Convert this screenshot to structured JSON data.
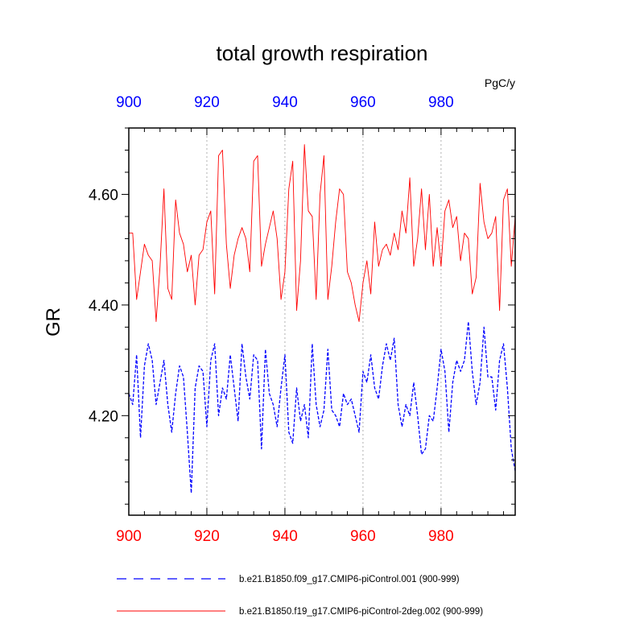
{
  "chart_data": {
    "type": "line",
    "title": "total growth respiration",
    "units": "PgC/y",
    "ylabel": "GR",
    "xlabel": "",
    "xlim": [
      900,
      999
    ],
    "ylim": [
      4.02,
      4.72
    ],
    "x_ticks": [
      "900",
      "920",
      "940",
      "960",
      "980"
    ],
    "y_ticks": [
      "4.20",
      "4.40",
      "4.60"
    ],
    "grid": "vertical dotted at major x ticks",
    "legend_position": "bottom",
    "series": [
      {
        "name": "b.e21.B1850.f09_g17.CMIP6-piControl.001 (900-999)",
        "color": "#0000ff",
        "style": "dashed",
        "values": [
          4.24,
          4.22,
          4.31,
          4.16,
          4.29,
          4.33,
          4.3,
          4.22,
          4.26,
          4.3,
          4.22,
          4.17,
          4.24,
          4.29,
          4.27,
          4.17,
          4.06,
          4.25,
          4.29,
          4.28,
          4.18,
          4.3,
          4.33,
          4.2,
          4.25,
          4.23,
          4.31,
          4.25,
          4.19,
          4.33,
          4.27,
          4.23,
          4.31,
          4.3,
          4.14,
          4.32,
          4.24,
          4.22,
          4.18,
          4.25,
          4.31,
          4.17,
          4.15,
          4.25,
          4.19,
          4.22,
          4.16,
          4.33,
          4.22,
          4.18,
          4.21,
          4.32,
          4.21,
          4.2,
          4.18,
          4.24,
          4.22,
          4.23,
          4.2,
          4.17,
          4.28,
          4.26,
          4.31,
          4.25,
          4.23,
          4.29,
          4.33,
          4.3,
          4.34,
          4.22,
          4.18,
          4.22,
          4.2,
          4.26,
          4.2,
          4.13,
          4.14,
          4.2,
          4.19,
          4.25,
          4.32,
          4.28,
          4.17,
          4.26,
          4.3,
          4.28,
          4.3,
          4.37,
          4.28,
          4.22,
          4.26,
          4.36,
          4.27,
          4.27,
          4.21,
          4.3,
          4.33,
          4.25,
          4.14,
          4.1
        ]
      },
      {
        "name": "b.e21.B1850.f19_g17.CMIP6-piControl-2deg.002 (900-999)",
        "color": "#ff0000",
        "style": "solid",
        "values": [
          4.53,
          4.53,
          4.41,
          4.46,
          4.51,
          4.49,
          4.48,
          4.37,
          4.47,
          4.61,
          4.43,
          4.41,
          4.59,
          4.53,
          4.51,
          4.46,
          4.49,
          4.4,
          4.49,
          4.5,
          4.55,
          4.57,
          4.42,
          4.67,
          4.68,
          4.51,
          4.43,
          4.49,
          4.52,
          4.54,
          4.52,
          4.46,
          4.66,
          4.67,
          4.47,
          4.51,
          4.54,
          4.57,
          4.52,
          4.41,
          4.46,
          4.61,
          4.66,
          4.39,
          4.48,
          4.69,
          4.57,
          4.56,
          4.41,
          4.6,
          4.67,
          4.41,
          4.47,
          4.55,
          4.61,
          4.6,
          4.46,
          4.44,
          4.4,
          4.37,
          4.44,
          4.48,
          4.42,
          4.55,
          4.47,
          4.5,
          4.51,
          4.49,
          4.53,
          4.5,
          4.57,
          4.53,
          4.63,
          4.47,
          4.52,
          4.61,
          4.5,
          4.6,
          4.47,
          4.54,
          4.47,
          4.57,
          4.59,
          4.54,
          4.56,
          4.48,
          4.53,
          4.52,
          4.42,
          4.45,
          4.62,
          4.55,
          4.52,
          4.53,
          4.56,
          4.39,
          4.59,
          4.61,
          4.47,
          4.56
        ]
      }
    ]
  }
}
